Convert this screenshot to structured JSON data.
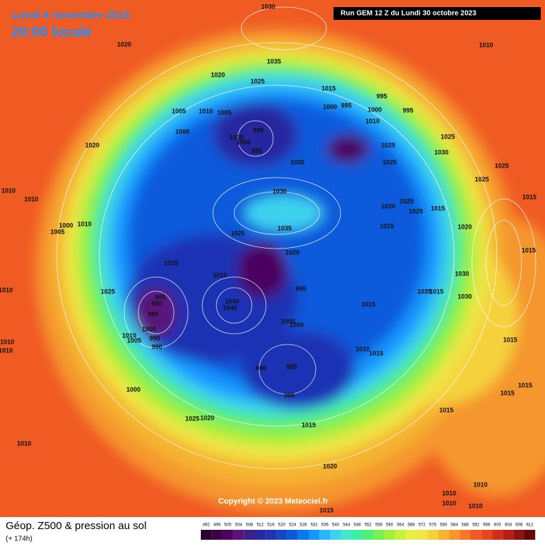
{
  "header": {
    "date": "Lundi 6 novembre 2023",
    "time": "20:00 locale",
    "run": "Run GEM 12 Z du Lundi 30 octobre 2023"
  },
  "map": {
    "copyright": "Copyright © 2023 Meteociel.fr",
    "pressure_labels": [
      1030,
      1020,
      1035,
      1020,
      1025,
      1015,
      995,
      1000,
      995,
      1000,
      995,
      1010,
      1005,
      1010,
      1005,
      1000,
      995,
      1005,
      1000,
      995,
      1020,
      1025,
      1025,
      1030,
      1020,
      1025,
      1030,
      1035,
      1020,
      1025,
      1025,
      1015,
      1015,
      1020,
      1025,
      1010,
      1010,
      1005,
      1000,
      1010,
      1015,
      1020,
      1010,
      995,
      1025,
      995,
      990,
      985,
      1000,
      995,
      990,
      1010,
      1005,
      1040,
      1045,
      1005,
      1000,
      1015,
      1015,
      1035,
      1030,
      1030,
      1015,
      1015,
      1015,
      1025,
      1025,
      1010,
      1010,
      1015,
      990,
      985,
      995,
      1000,
      1025,
      1020,
      1015,
      1015,
      1015,
      1015,
      1020,
      1010,
      1010,
      1010,
      1010,
      1010,
      1010,
      1010,
      1010,
      1015
    ]
  },
  "footer": {
    "title": "Géop. Z500 & pression au sol",
    "lead": "(+ 174h)"
  },
  "legend": {
    "ticks": [
      492,
      496,
      500,
      504,
      508,
      512,
      516,
      520,
      524,
      528,
      532,
      536,
      540,
      544,
      548,
      552,
      556,
      560,
      564,
      568,
      572,
      576,
      580,
      584,
      588,
      592,
      596,
      600,
      604,
      608,
      612
    ],
    "colors": [
      "#2b0030",
      "#3a0048",
      "#4b0060",
      "#5a1478",
      "#3c1e8c",
      "#2828a0",
      "#1e32b4",
      "#1446c8",
      "#0a5adc",
      "#0a78f0",
      "#1496ff",
      "#28b4ff",
      "#3cd2f0",
      "#46e6c8",
      "#3cf0a0",
      "#50f078",
      "#78f050",
      "#a0f03c",
      "#c8f03c",
      "#e6f046",
      "#f0e646",
      "#f5d23c",
      "#f5b432",
      "#f5962d",
      "#f57828",
      "#f05a23",
      "#e6461e",
      "#d22d19",
      "#b41e14",
      "#8c140f",
      "#640a0a"
    ]
  }
}
